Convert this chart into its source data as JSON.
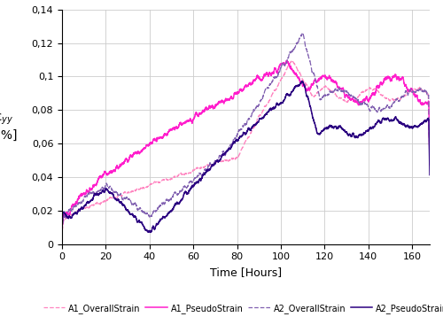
{
  "title": "",
  "xlabel": "Time [Hours]",
  "ylabel": "ε$_{yy}$\n [%]",
  "xlim": [
    0,
    168
  ],
  "ylim": [
    0,
    0.14
  ],
  "yticks": [
    0,
    0.02,
    0.04,
    0.06,
    0.08,
    0.1,
    0.12,
    0.14
  ],
  "xticks": [
    0,
    20,
    40,
    60,
    80,
    100,
    120,
    140,
    160
  ],
  "color_a1_overall": "#FF85C0",
  "color_a1_pseudo": "#FF1ECC",
  "color_a2_overall": "#8060B0",
  "color_a2_pseudo": "#2B0080",
  "background_color": "#ffffff",
  "grid_color": "#cccccc"
}
